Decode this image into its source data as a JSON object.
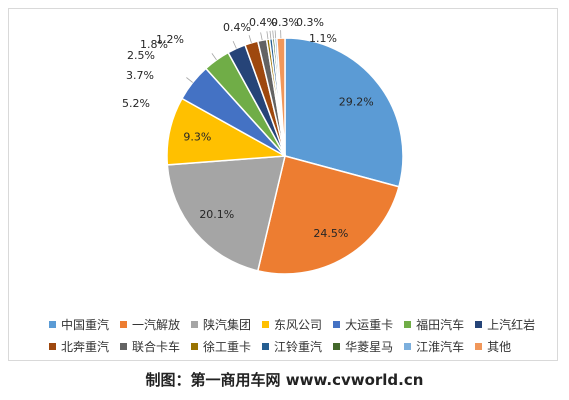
{
  "chart_data": {
    "type": "pie",
    "categories": [
      "中国重汽",
      "一汽解放",
      "陕汽集团",
      "东风公司",
      "大运重卡",
      "福田汽车",
      "上汽红岩",
      "北奔重汽",
      "联合卡车",
      "徐工重卡",
      "江铃重汽",
      "华菱星马",
      "江淮汽车",
      "其他"
    ],
    "values": [
      29.2,
      24.5,
      20.1,
      9.3,
      5.2,
      3.7,
      2.5,
      1.8,
      1.2,
      0.4,
      0.4,
      0.3,
      0.3,
      1.1
    ],
    "labels": [
      "29.2%",
      "24.5%",
      "20.1%",
      "9.3%",
      "5.2%",
      "3.7%",
      "2.5%",
      "1.8%",
      "1.2%",
      "0.4%",
      "0.4%",
      "0.3%",
      "0.3%",
      "1.1%"
    ],
    "colors": [
      "#5b9bd5",
      "#ed7d31",
      "#a5a5a5",
      "#ffc000",
      "#4472c4",
      "#70ad47",
      "#264478",
      "#9e480e",
      "#636363",
      "#997300",
      "#255e91",
      "#43682b",
      "#7cafdd",
      "#f1975a"
    ],
    "legend_position": "bottom"
  },
  "footer": {
    "credit": "制图：第一商用车网 www.cvworld.cn"
  }
}
